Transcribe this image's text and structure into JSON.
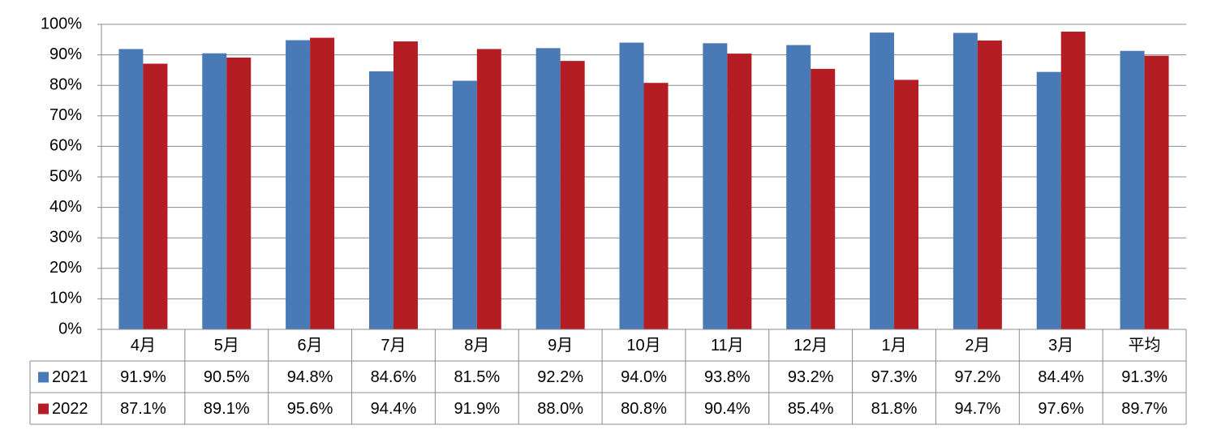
{
  "chart_data": {
    "type": "bar",
    "categories": [
      "4月",
      "5月",
      "6月",
      "7月",
      "8月",
      "9月",
      "10月",
      "11月",
      "12月",
      "1月",
      "2月",
      "3月",
      "平均"
    ],
    "series": [
      {
        "name": "2021",
        "color": "#4a7ab5",
        "values": [
          91.9,
          90.5,
          94.8,
          84.6,
          81.5,
          92.2,
          94.0,
          93.8,
          93.2,
          97.3,
          97.2,
          84.4,
          91.3
        ],
        "value_labels": [
          "91.9%",
          "90.5%",
          "94.8%",
          "84.6%",
          "81.5%",
          "92.2%",
          "94.0%",
          "93.8%",
          "93.2%",
          "97.3%",
          "97.2%",
          "84.4%",
          "91.3%"
        ]
      },
      {
        "name": "2022",
        "color": "#b51d25",
        "values": [
          87.1,
          89.1,
          95.6,
          94.4,
          91.9,
          88.0,
          80.8,
          90.4,
          85.4,
          81.8,
          94.7,
          97.6,
          89.7
        ],
        "value_labels": [
          "87.1%",
          "89.1%",
          "95.6%",
          "94.4%",
          "91.9%",
          "88.0%",
          "80.8%",
          "90.4%",
          "85.4%",
          "81.8%",
          "94.7%",
          "97.6%",
          "89.7%"
        ]
      }
    ],
    "ylim": [
      0,
      100
    ],
    "yticks": [
      {
        "value": 0,
        "label": "0%"
      },
      {
        "value": 10,
        "label": "10%"
      },
      {
        "value": 20,
        "label": "20%"
      },
      {
        "value": 30,
        "label": "30%"
      },
      {
        "value": 40,
        "label": "40%"
      },
      {
        "value": 50,
        "label": "50%"
      },
      {
        "value": 60,
        "label": "60%"
      },
      {
        "value": 70,
        "label": "70%"
      },
      {
        "value": 80,
        "label": "80%"
      },
      {
        "value": 90,
        "label": "90%"
      },
      {
        "value": 100,
        "label": "100%"
      }
    ],
    "grid": true
  }
}
